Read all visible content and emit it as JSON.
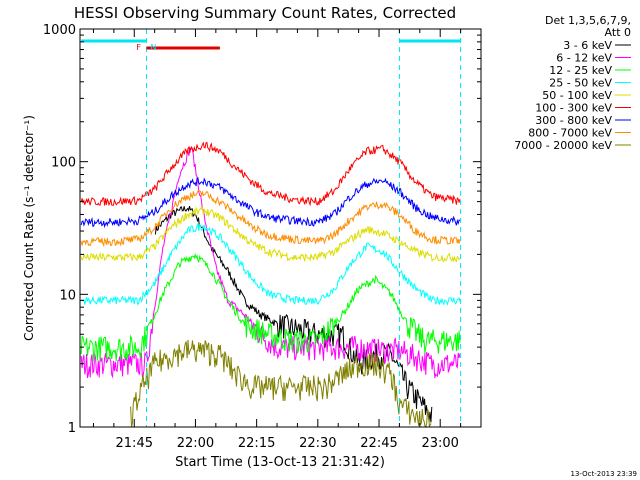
{
  "title": "HESSI Observing Summary Count Rates, Corrected",
  "stamp": "13-Oct-2013 23:39",
  "legend_header": [
    "Det 1,3,5,6,7,9,",
    "Att 0"
  ],
  "state_bars": {
    "segments": [
      {
        "kind": "night",
        "start": "21:32",
        "end": "21:48",
        "color": "#00e5ee"
      },
      {
        "kind": "night",
        "start": "22:50",
        "end": "23:05",
        "color": "#00e5ee"
      },
      {
        "kind": "flare",
        "start": "21:48",
        "end": "22:06",
        "color": "#e00000"
      }
    ],
    "markers": [
      {
        "label": "F",
        "at": "21:47",
        "color": "#e00000"
      },
      {
        "label": "N",
        "at": "21:48",
        "color": "#00e5ee"
      }
    ],
    "transitions": [
      "21:48",
      "22:50",
      "23:05"
    ]
  },
  "chart_data": {
    "type": "line",
    "title": "HESSI Observing Summary Count Rates, Corrected",
    "xlabel": "Start Time (13-Oct-13 21:31:42)",
    "ylabel": "Corrected Count Rate (s⁻¹ detector⁻¹)",
    "y_scale": "log",
    "ylim": [
      1,
      1000
    ],
    "xlim": [
      "21:31:42",
      "23:10:00"
    ],
    "x_ticks": [
      "21:45",
      "22:00",
      "22:15",
      "22:30",
      "22:45",
      "23:00"
    ],
    "y_ticks": [
      "1",
      "10",
      "100",
      "1000"
    ],
    "grid": false,
    "legend_position": "right",
    "series": [
      {
        "name": "3 - 6 keV",
        "color": "#000000",
        "x": [
          "21:46",
          "21:48",
          "21:50",
          "21:54",
          "21:58",
          "22:00",
          "22:04",
          "22:08",
          "22:12",
          "22:16",
          "22:20",
          "22:30",
          "22:36",
          "22:40",
          "22:44",
          "22:48",
          "22:52",
          "22:58",
          "23:05"
        ],
        "y": [
          null,
          null,
          30,
          40,
          45,
          40,
          22,
          15,
          9,
          7,
          6,
          5,
          5,
          3,
          3.5,
          3.5,
          2,
          1.2,
          null
        ]
      },
      {
        "name": "6 - 12 keV",
        "color": "#ff00ff",
        "x": [
          "21:32",
          "21:40",
          "21:46",
          "21:48",
          "21:52",
          "21:56",
          "21:59",
          "22:02",
          "22:05",
          "22:08",
          "22:12",
          "22:16",
          "22:20",
          "22:30",
          "22:40",
          "22:45",
          "22:50",
          "22:58",
          "23:05"
        ],
        "y": [
          3,
          3,
          3,
          3,
          22,
          80,
          130,
          40,
          16,
          9,
          7,
          5,
          4,
          4,
          4,
          3.8,
          3.8,
          3,
          3
        ]
      },
      {
        "name": "12 - 25 keV",
        "color": "#00ff00",
        "x": [
          "21:32",
          "21:40",
          "21:46",
          "21:48",
          "21:52",
          "21:56",
          "22:00",
          "22:04",
          "22:08",
          "22:12",
          "22:18",
          "22:24",
          "22:30",
          "22:36",
          "22:40",
          "22:44",
          "22:48",
          "22:52",
          "22:56",
          "23:00",
          "23:05"
        ],
        "y": [
          4,
          4,
          4,
          5,
          10,
          17,
          20,
          15,
          9,
          6,
          5,
          4.5,
          4.5,
          7,
          11,
          13,
          10,
          6,
          4.5,
          4.5,
          4.5
        ]
      },
      {
        "name": "25 - 50 keV",
        "color": "#00ffff",
        "x": [
          "21:32",
          "21:40",
          "21:46",
          "21:50",
          "21:54",
          "21:58",
          "22:02",
          "22:06",
          "22:10",
          "22:14",
          "22:18",
          "22:24",
          "22:30",
          "22:34",
          "22:38",
          "22:42",
          "22:46",
          "22:50",
          "22:54",
          "22:58",
          "23:05"
        ],
        "y": [
          9,
          9,
          9,
          12,
          20,
          30,
          33,
          27,
          19,
          13,
          10,
          9,
          9,
          11,
          17,
          23,
          21,
          15,
          11,
          9,
          9
        ]
      },
      {
        "name": "50 - 100 keV",
        "color": "#dddd00",
        "x": [
          "21:32",
          "21:40",
          "21:46",
          "21:50",
          "21:54",
          "21:58",
          "22:02",
          "22:06",
          "22:10",
          "22:14",
          "22:18",
          "22:24",
          "22:30",
          "22:34",
          "22:38",
          "22:42",
          "22:46",
          "22:50",
          "22:54",
          "22:58",
          "23:05"
        ],
        "y": [
          19,
          19,
          19,
          23,
          32,
          40,
          43,
          38,
          30,
          24,
          21,
          19,
          19,
          21,
          26,
          31,
          29,
          25,
          21,
          19,
          19
        ]
      },
      {
        "name": "100 - 300 keV",
        "color": "#ff0000",
        "x": [
          "21:32",
          "21:40",
          "21:46",
          "21:50",
          "21:54",
          "21:58",
          "22:02",
          "22:06",
          "22:10",
          "22:14",
          "22:18",
          "22:24",
          "22:30",
          "22:34",
          "22:38",
          "22:42",
          "22:46",
          "22:50",
          "22:54",
          "22:58",
          "23:05"
        ],
        "y": [
          50,
          50,
          51,
          62,
          90,
          120,
          135,
          120,
          90,
          70,
          58,
          52,
          50,
          60,
          90,
          120,
          125,
          100,
          70,
          55,
          50
        ]
      },
      {
        "name": "300 - 800 keV",
        "color": "#0000ff",
        "x": [
          "21:32",
          "21:40",
          "21:46",
          "21:50",
          "21:54",
          "21:58",
          "22:02",
          "22:06",
          "22:10",
          "22:14",
          "22:18",
          "22:24",
          "22:30",
          "22:34",
          "22:38",
          "22:42",
          "22:46",
          "22:50",
          "22:54",
          "22:58",
          "23:05"
        ],
        "y": [
          35,
          35,
          36,
          42,
          55,
          68,
          72,
          64,
          52,
          43,
          38,
          36,
          35,
          40,
          55,
          68,
          72,
          60,
          45,
          38,
          35
        ]
      },
      {
        "name": "800 - 7000 keV",
        "color": "#ff8c00",
        "x": [
          "21:32",
          "21:40",
          "21:46",
          "21:50",
          "21:54",
          "21:58",
          "22:02",
          "22:06",
          "22:10",
          "22:14",
          "22:18",
          "22:24",
          "22:30",
          "22:34",
          "22:38",
          "22:42",
          "22:46",
          "22:50",
          "22:54",
          "22:58",
          "23:05"
        ],
        "y": [
          25,
          25,
          26,
          32,
          45,
          55,
          58,
          50,
          40,
          32,
          28,
          26,
          25,
          28,
          37,
          46,
          48,
          40,
          30,
          26,
          25
        ]
      },
      {
        "name": "7000 - 20000 keV",
        "color": "#808000",
        "x": [
          "21:32",
          "21:40",
          "21:44",
          "21:47",
          "21:50",
          "21:54",
          "21:58",
          "22:02",
          "22:06",
          "22:10",
          "22:14",
          "22:20",
          "22:26",
          "22:32",
          "22:36",
          "22:40",
          "22:44",
          "22:48",
          "22:50",
          "22:54",
          "22:58",
          "23:05"
        ],
        "y": [
          null,
          null,
          1.2,
          2,
          3,
          3.5,
          3.8,
          3.8,
          3.5,
          2.5,
          2,
          2,
          2,
          2,
          2.5,
          3,
          3,
          2.5,
          1.5,
          1.2,
          1.1,
          null
        ]
      }
    ]
  }
}
